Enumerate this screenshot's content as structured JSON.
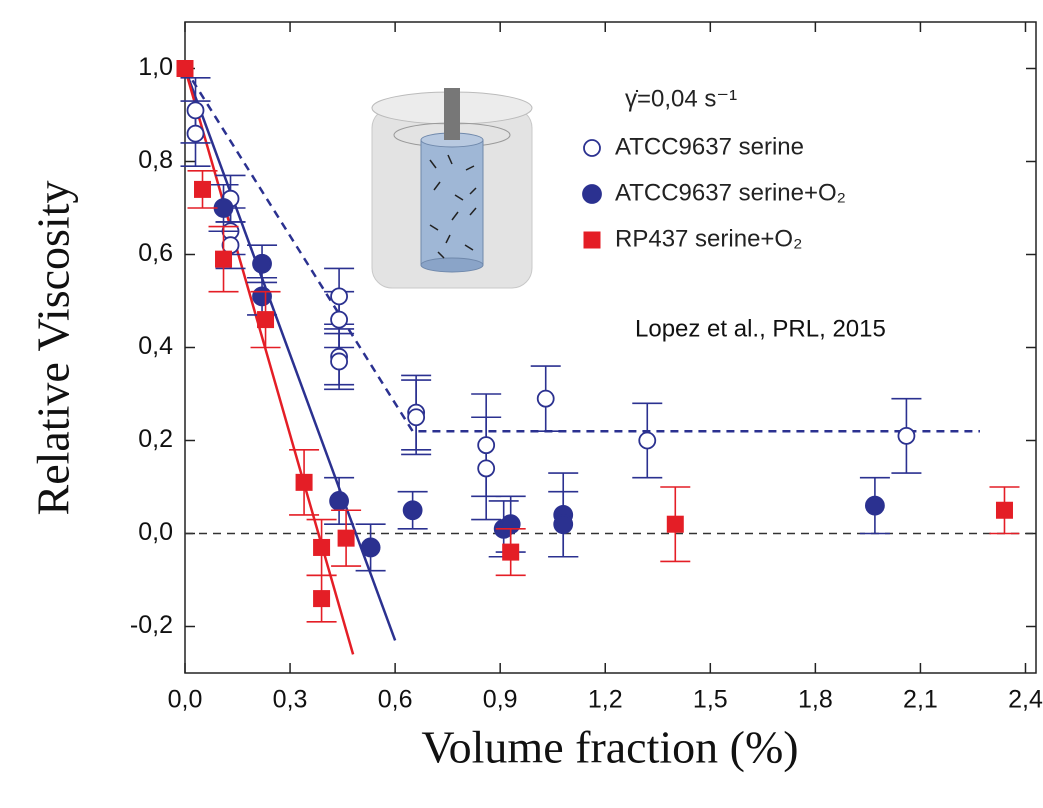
{
  "chart_data": {
    "type": "scatter",
    "xlabel": "Volume fraction (%)",
    "ylabel": "Relative Viscosity",
    "legend_title": "γ̇=0,04 s⁻¹",
    "annotation": "Lopez et al., PRL, 2015",
    "xlim": [
      0,
      2.43
    ],
    "ylim": [
      -0.3,
      1.1
    ],
    "xticks": [
      {
        "value": 0,
        "label": "0,0"
      },
      {
        "value": 0.3,
        "label": "0,3"
      },
      {
        "value": 0.6,
        "label": "0,6"
      },
      {
        "value": 0.9,
        "label": "0,9"
      },
      {
        "value": 1.2,
        "label": "1,2"
      },
      {
        "value": 1.5,
        "label": "1,5"
      },
      {
        "value": 1.8,
        "label": "1,8"
      },
      {
        "value": 2.1,
        "label": "2,1"
      },
      {
        "value": 2.4,
        "label": "2,4"
      }
    ],
    "yticks": [
      {
        "value": -0.2,
        "label": "-0,2"
      },
      {
        "value": 0,
        "label": "0,0"
      },
      {
        "value": 0.2,
        "label": "0,2"
      },
      {
        "value": 0.4,
        "label": "0,4"
      },
      {
        "value": 0.6,
        "label": "0,6"
      },
      {
        "value": 0.8,
        "label": "0,8"
      },
      {
        "value": 1.0,
        "label": "1,0"
      }
    ],
    "series": [
      {
        "name": "ATCC9637 serine",
        "color": "#2b3190",
        "marker": "open-circle",
        "x": [
          0.03,
          0.03,
          0.13,
          0.13,
          0.13,
          0.44,
          0.44,
          0.44,
          0.44,
          0.66,
          0.66,
          0.86,
          0.86,
          1.03,
          1.32,
          2.06
        ],
        "values": [
          0.91,
          0.86,
          0.72,
          0.65,
          0.62,
          0.51,
          0.46,
          0.38,
          0.37,
          0.26,
          0.25,
          0.19,
          0.14,
          0.29,
          0.2,
          0.21
        ],
        "errors": [
          0.07,
          0.07,
          0.05,
          0.05,
          0.05,
          0.06,
          0.06,
          0.06,
          0.06,
          0.08,
          0.08,
          0.11,
          0.11,
          0.07,
          0.08,
          0.08
        ]
      },
      {
        "name": "ATCC9637 serine+O₂",
        "color": "#2b3190",
        "marker": "circle",
        "x": [
          0.11,
          0.22,
          0.22,
          0.44,
          0.53,
          0.65,
          0.91,
          0.93,
          1.08,
          1.08,
          1.97
        ],
        "values": [
          0.7,
          0.58,
          0.51,
          0.07,
          -0.03,
          0.05,
          0.01,
          0.02,
          0.04,
          0.02,
          0.06
        ],
        "errors": [
          0.05,
          0.04,
          0.04,
          0.05,
          0.05,
          0.04,
          0.06,
          0.06,
          0.09,
          0.07,
          0.06
        ]
      },
      {
        "name": "RP437 serine+O₂",
        "color": "#e41e26",
        "marker": "square",
        "x": [
          0.0,
          0.05,
          0.11,
          0.23,
          0.34,
          0.39,
          0.39,
          0.46,
          0.93,
          1.4,
          2.34
        ],
        "values": [
          1.0,
          0.74,
          0.59,
          0.46,
          0.11,
          -0.03,
          -0.14,
          -0.01,
          -0.04,
          0.02,
          0.05
        ],
        "errors": [
          null,
          0.04,
          0.07,
          0.06,
          0.07,
          0.06,
          0.05,
          0.06,
          0.05,
          0.08,
          0.05
        ]
      }
    ],
    "fit_lines": [
      {
        "color": "#2b3190",
        "style": "solid",
        "x": [
          0.0,
          0.6
        ],
        "values": [
          1.0,
          -0.23
        ]
      },
      {
        "color": "#e41e26",
        "style": "solid",
        "x": [
          0.0,
          0.48
        ],
        "values": [
          1.0,
          -0.26
        ]
      },
      {
        "color": "#2b3190",
        "style": "dashed",
        "x": [
          0.0,
          0.65,
          2.27
        ],
        "values": [
          1.0,
          0.22,
          0.22
        ]
      }
    ],
    "reference_line": {
      "y": 0,
      "color": "#333333",
      "style": "dashed"
    }
  }
}
